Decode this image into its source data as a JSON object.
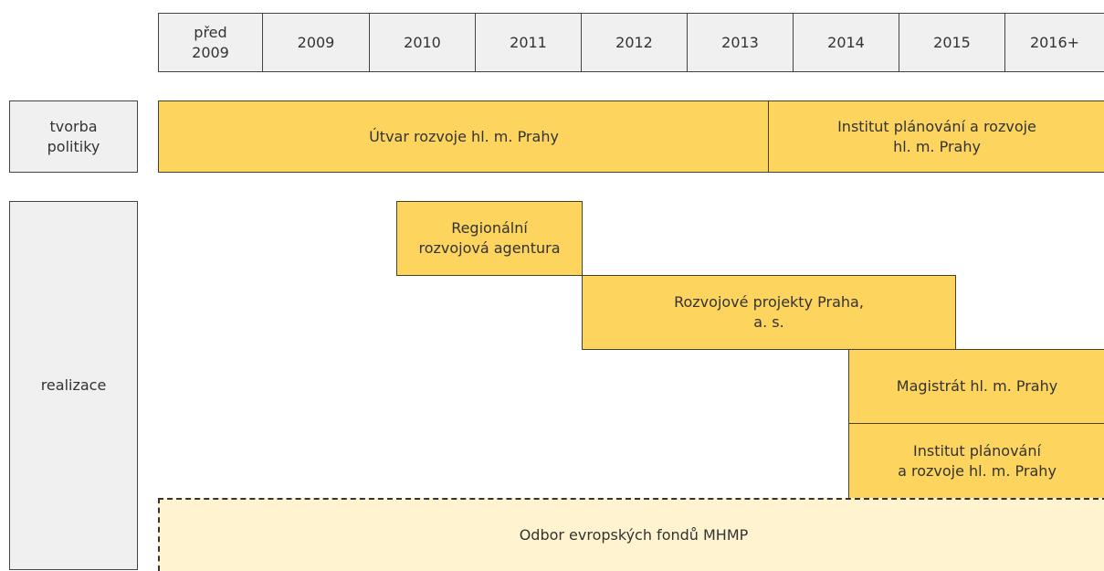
{
  "header": {
    "years": [
      [
        "před",
        "2009"
      ],
      [
        "2009"
      ],
      [
        "2010"
      ],
      [
        "2011"
      ],
      [
        "2012"
      ],
      [
        "2013"
      ],
      [
        "2014"
      ],
      [
        "2015"
      ],
      [
        "2016+"
      ]
    ]
  },
  "rows": [
    [
      "tvorba",
      "politiky"
    ],
    [
      "realizace"
    ]
  ],
  "bars": [
    {
      "lines": [
        "Útvar rozvoje hl. m. Prahy"
      ]
    },
    {
      "lines": [
        "Institut plánování a rozvoje",
        "hl. m. Prahy"
      ]
    },
    {
      "lines": [
        "Regionální",
        "rozvojová agentura"
      ]
    },
    {
      "lines": [
        "Rozvojové projekty Praha,",
        "a. s."
      ]
    },
    {
      "lines": [
        "Magistrát hl. m. Prahy"
      ]
    },
    {
      "lines": [
        "Institut plánování",
        "a rozvoje hl. m. Prahy"
      ]
    },
    {
      "lines": [
        "Odbor evropských fondů MHMP"
      ]
    }
  ]
}
